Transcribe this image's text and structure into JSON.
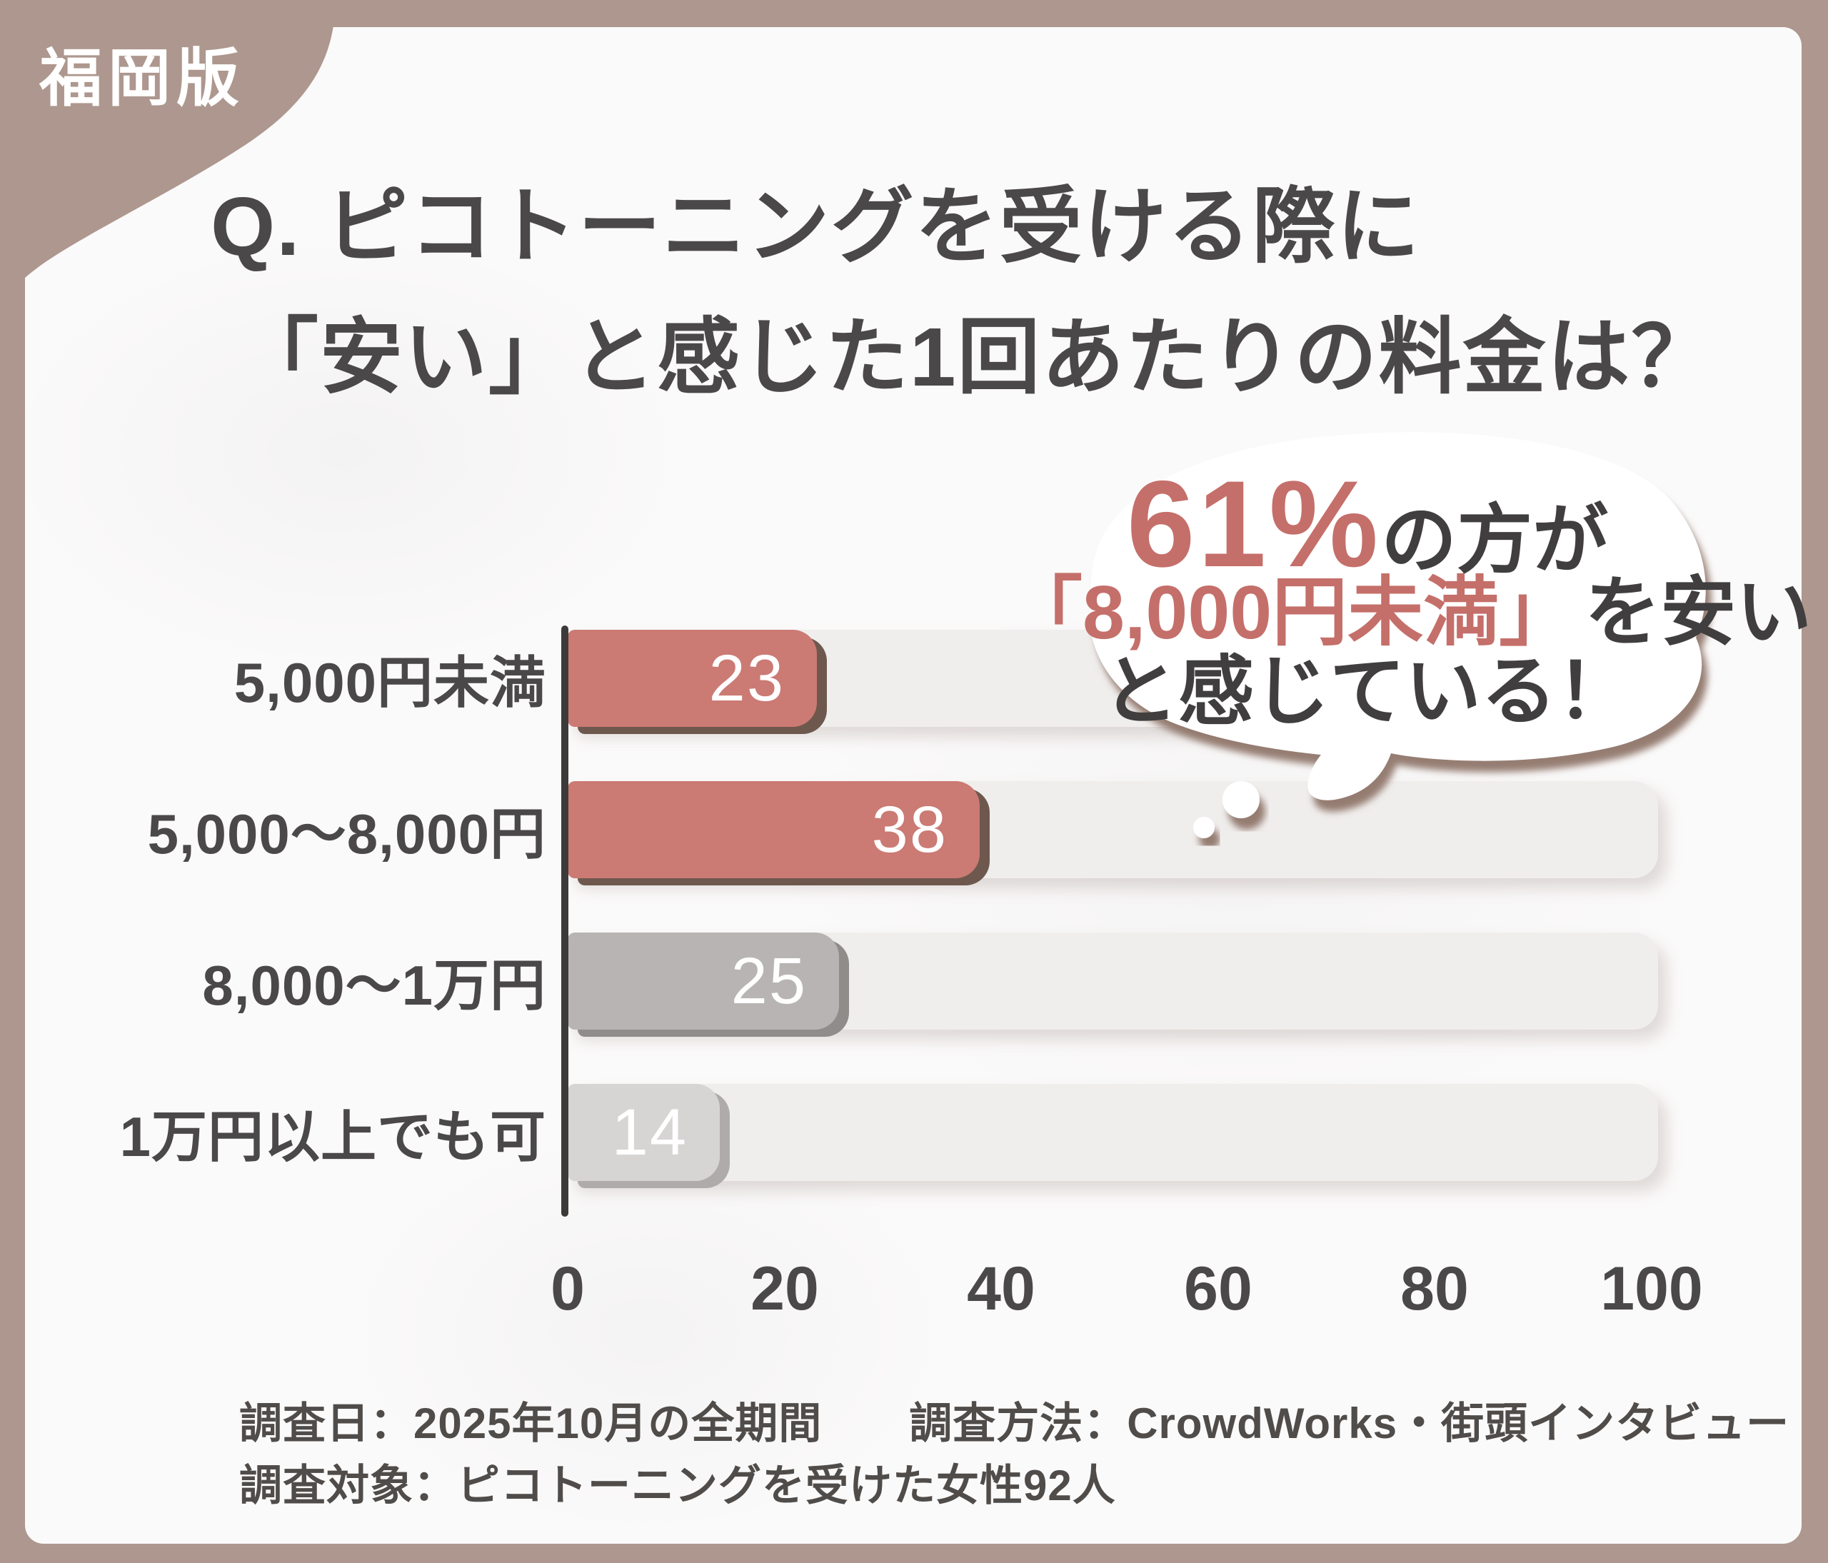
{
  "badge": {
    "label": "福岡版"
  },
  "title": {
    "line1": "Q. ピコトーニングを受ける際に",
    "line2": "「安い」と感じた1回あたりの料金は？"
  },
  "bubble": {
    "stat": "61%",
    "stat_suffix": "の方が",
    "highlight": "「8,000円未満」",
    "highlight_suffix": "を安い",
    "line3": "と感じている！"
  },
  "chart_data": {
    "type": "bar",
    "orientation": "horizontal",
    "title": "Q. ピコトーニングを受ける際に「安い」と感じた1回あたりの料金は？",
    "categories": [
      "5,000円未満",
      "5,000～8,000円",
      "8,000～1万円",
      "1万円以上でも可"
    ],
    "values": [
      23,
      38,
      25,
      14
    ],
    "bar_colors": [
      "#cb7a74",
      "#cb7a74",
      "#b7b4b3",
      "#d7d5d4"
    ],
    "bar_edge_colors": [
      "#6e584d",
      "#6e584d",
      "#8f8c8a",
      "#aeabaa"
    ],
    "value_label_color": "#ffffff",
    "xlabel": "",
    "ylabel": "",
    "xlim": [
      0,
      100
    ],
    "x_ticks": [
      0,
      20,
      40,
      60,
      80,
      100
    ],
    "grid": false,
    "legend": false,
    "annotation": "61%の方が「8,000円未満」を安いと感じている！"
  },
  "footer": {
    "line1": "調査日：2025年10月の全期間　　調査方法：CrowdWorks・街頭インタビュー",
    "line2": "調査対象：ピコトーニングを受けた女性92人"
  },
  "colors": {
    "frame": "#ad978e",
    "panel": "#fbfafa",
    "accent": "#cb7a74",
    "stat_accent": "#c56f6a",
    "gray_bar": "#b7b4b3",
    "light_gray_bar": "#d7d5d4",
    "track": "#f0eeed",
    "text_dark": "#4a4849",
    "bubble_shadow": "#8a7063"
  }
}
